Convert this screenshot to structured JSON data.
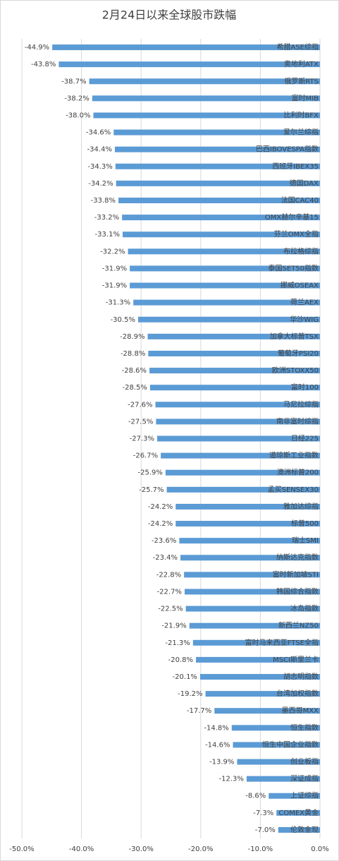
{
  "chart_data": {
    "type": "hbar",
    "title": "2月24日以来全球股市跌幅",
    "categories": [
      "希腊ASE综指",
      "奥地利ATX",
      "俄罗斯RTS",
      "富时MIB",
      "比利时BFX",
      "爱尔兰综指",
      "巴西IBOVESPA指数",
      "西班牙IBEX35",
      "德国DAX",
      "法国CAC40",
      "OMX赫尔辛基15",
      "芬兰OMX全指",
      "布拉格综指",
      "泰国SET50指数",
      "挪威OSEAX",
      "荷兰AEX",
      "华沙WIG",
      "加拿大标普TSX",
      "葡萄牙PSI20",
      "欧洲STOXX50",
      "富时100",
      "马尼拉综指",
      "南非富时综指",
      "日经225",
      "道琼斯工业指数",
      "澳洲标普200",
      "孟买SENSEX30",
      "雅加达综指",
      "标普500",
      "瑞士SMI",
      "纳斯达克指数",
      "富时新加坡STI",
      "韩国综合指数",
      "冰岛指数",
      "新西兰NZ50",
      "富时马来西亚FTSE全指",
      "MSCI斯里兰卡",
      "胡志明指数",
      "台湾加权指数",
      "墨西哥MXX",
      "恒生指数",
      "恒生中国企业指数",
      "创业板指",
      "深证成指",
      "上证综指",
      "COMEX黄金",
      "伦敦金现"
    ],
    "values": [
      -44.9,
      -43.8,
      -38.7,
      -38.2,
      -38.0,
      -34.6,
      -34.4,
      -34.3,
      -34.2,
      -33.8,
      -33.2,
      -33.1,
      -32.2,
      -31.9,
      -31.9,
      -31.3,
      -30.5,
      -28.9,
      -28.8,
      -28.6,
      -28.5,
      -27.6,
      -27.5,
      -27.3,
      -26.7,
      -25.9,
      -25.7,
      -24.2,
      -24.2,
      -23.6,
      -23.4,
      -22.8,
      -22.7,
      -22.5,
      -21.9,
      -21.3,
      -20.8,
      -20.1,
      -19.2,
      -17.7,
      -14.8,
      -14.6,
      -13.9,
      -12.3,
      -8.6,
      -7.3,
      -7.0
    ],
    "value_labels": [
      "-44.9%",
      "-43.8%",
      "-38.7%",
      "-38.2%",
      "-38.0%",
      "-34.6%",
      "-34.4%",
      "-34.3%",
      "-34.2%",
      "-33.8%",
      "-33.2%",
      "-33.1%",
      "-32.2%",
      "-31.9%",
      "-31.9%",
      "-31.3%",
      "-30.5%",
      "-28.9%",
      "-28.8%",
      "-28.6%",
      "-28.5%",
      "-27.6%",
      "-27.5%",
      "-27.3%",
      "-26.7%",
      "-25.9%",
      "-25.7%",
      "-24.2%",
      "-24.2%",
      "-23.6%",
      "-23.4%",
      "-22.8%",
      "-22.7%",
      "-22.5%",
      "-21.9%",
      "-21.3%",
      "-20.8%",
      "-20.1%",
      "-19.2%",
      "-17.7%",
      "-14.8%",
      "-14.6%",
      "-13.9%",
      "-12.3%",
      "-8.6%",
      "-7.3%",
      "-7.0%"
    ],
    "color": "#5b9bd5",
    "xlim": [
      -50,
      0
    ],
    "xticks": [
      {
        "value": -50,
        "label": "-50.0%"
      },
      {
        "value": -40,
        "label": "-40.0%"
      },
      {
        "value": -30,
        "label": "-30.0%"
      },
      {
        "value": -20,
        "label": "-20.0%"
      },
      {
        "value": -10,
        "label": "-10.0%"
      },
      {
        "value": 0,
        "label": "0.0%"
      }
    ],
    "grid": true
  }
}
